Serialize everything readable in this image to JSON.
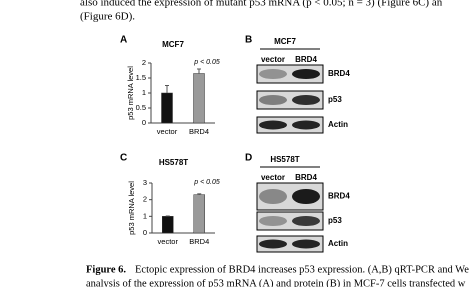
{
  "body_text": [
    "also induced the expression of mutant p53 mRNA (p < 0.05; n = 3) (Figure 6C) an",
    "(Figure 6D)."
  ],
  "chart_data": [
    {
      "type": "bar",
      "panel": "A",
      "title": "MCF7",
      "y_label": "p53 mRNA level",
      "annotation": "p < 0.05",
      "categories": [
        "vector",
        "BRD4"
      ],
      "values": [
        1,
        1.65
      ],
      "errors": [
        0.25,
        0.15
      ],
      "colors": [
        "#111111",
        "#9a9a9a"
      ],
      "ylim": [
        0,
        2
      ],
      "yticks": [
        0,
        0.5,
        1,
        1.5,
        2
      ]
    },
    {
      "type": "bar",
      "panel": "C",
      "title": "HS578T",
      "y_label": "p53 mRNA level",
      "annotation": "p < 0.05",
      "categories": [
        "vector",
        "BRD4"
      ],
      "values": [
        1,
        2.3
      ],
      "errors": [
        0.02,
        0.05
      ],
      "colors": [
        "#111111",
        "#9a9a9a"
      ],
      "ylim": [
        0,
        3
      ],
      "yticks": [
        0,
        1,
        2,
        3
      ]
    }
  ],
  "blots": [
    {
      "panel": "B",
      "title": "MCF7",
      "lanes": [
        "vector",
        "BRD4"
      ],
      "rows": [
        "BRD4",
        "p53",
        "Actin"
      ]
    },
    {
      "panel": "D",
      "title": "HS578T",
      "lanes": [
        "vector",
        "BRD4"
      ],
      "rows": [
        "BRD4",
        "p53",
        "Actin"
      ]
    }
  ],
  "caption": {
    "label": "Figure 6.",
    "lines": [
      "Ectopic expression of BRD4 increases p53 expression. (A,B) qRT-PCR and We",
      "analysis of the expression of p53 mRNA (A) and protein (B) in MCF-7 cells transfected w"
    ]
  }
}
